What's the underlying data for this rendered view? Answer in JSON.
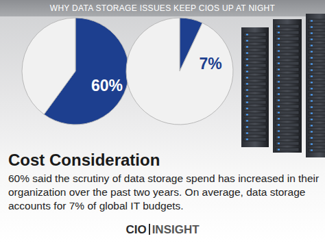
{
  "header": "WHY DATA STORAGE ISSUES KEEP CIOS UP AT NIGHT",
  "chart_data": [
    {
      "type": "pie",
      "values": [
        60,
        40
      ],
      "value_labels": [
        "60%",
        null
      ],
      "colors": [
        "#1d3f8f",
        "#f1f1f1"
      ],
      "data_labels": true
    },
    {
      "type": "pie",
      "values": [
        7,
        93
      ],
      "value_labels": [
        "7%",
        null
      ],
      "colors": [
        "#1d3f8f",
        "#f1f1f1"
      ],
      "data_labels": true
    }
  ],
  "heading": "Cost Consideration",
  "text": "60% said the scrutiny of data storage spend has increased in their organization over the past two years. On average, data storage accounts for 7% of global IT budgets.",
  "logo": [
    "CIO",
    "INSIGHT"
  ]
}
